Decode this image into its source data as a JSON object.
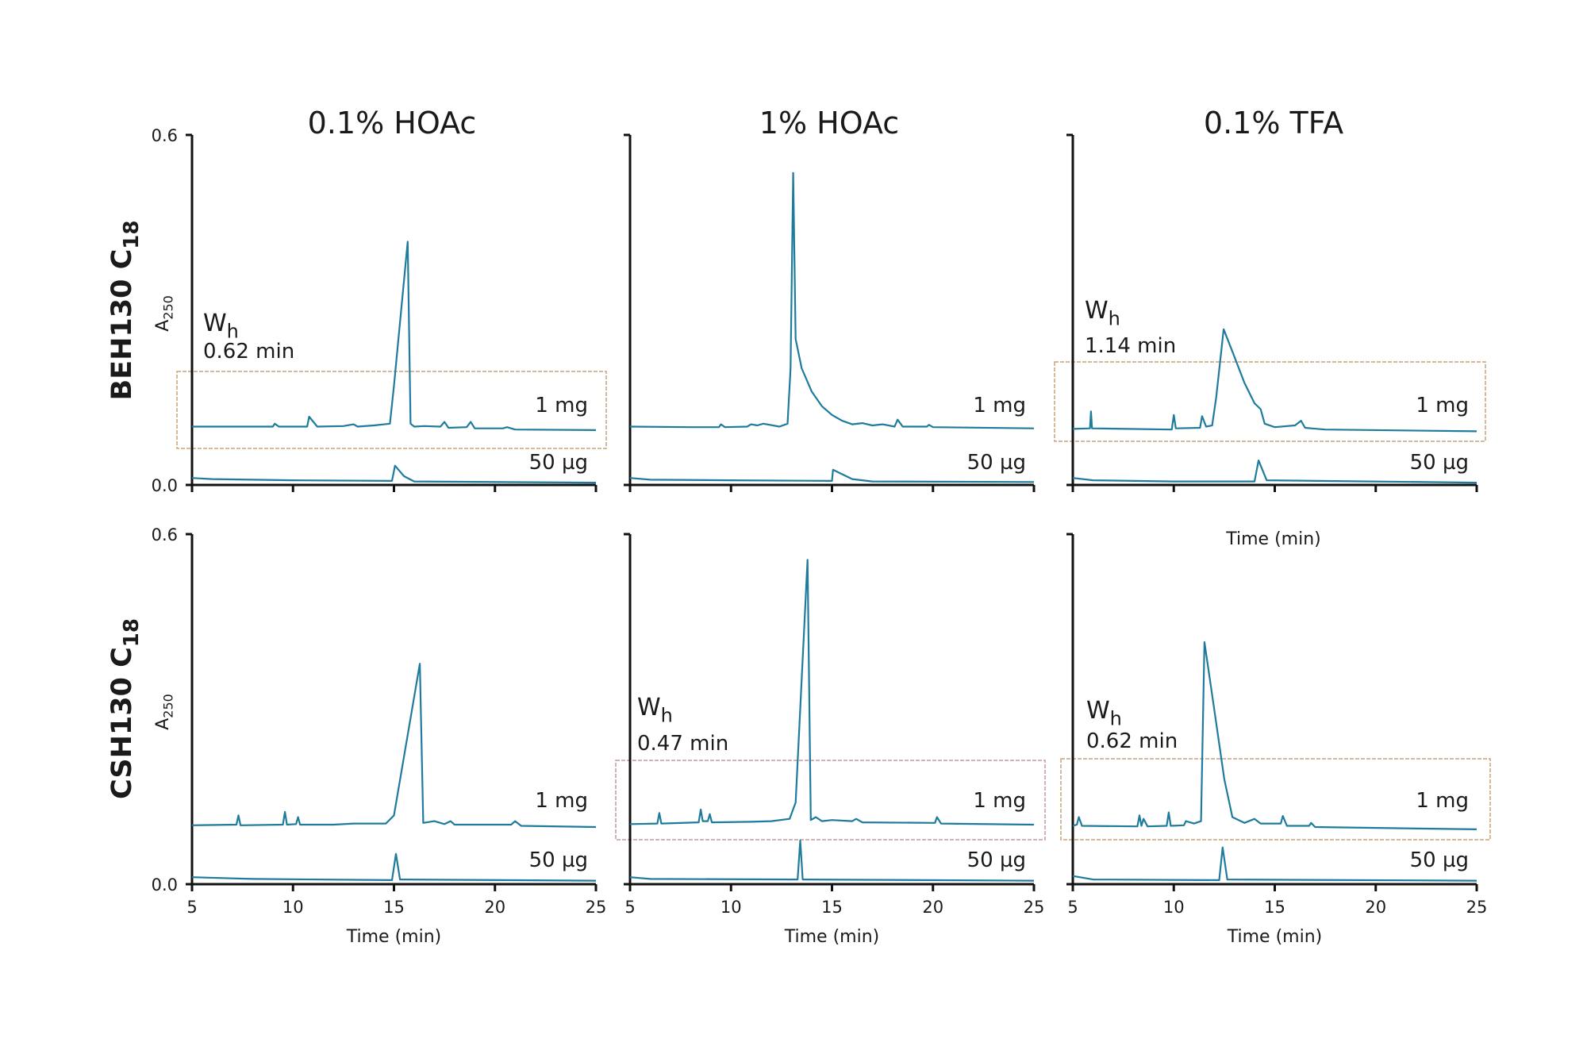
{
  "chart_data": {
    "type": "line",
    "layout": "2x3 grid",
    "column_titles": [
      "0.1% HOAc",
      "1% HOAc",
      "0.1% TFA"
    ],
    "row_labels": [
      {
        "main": "BEH130 C",
        "sub": "18"
      },
      {
        "main": "CSH130 C",
        "sub": "18"
      }
    ],
    "ylabel": {
      "main": "A",
      "sub": "250"
    },
    "xlabel": "Time (min)",
    "stray_xlabel": "Time (min)",
    "xlim": [
      5,
      25
    ],
    "ylim": [
      0,
      0.6
    ],
    "xticks": [
      "5",
      "10",
      "15",
      "20",
      "25"
    ],
    "yticks": [
      "0.0",
      "0.6"
    ],
    "grid": false,
    "colors": {
      "trace": "#1f7b9c",
      "box_tan": "#c9a27a",
      "box_rose": "#c29a9a",
      "axis": "#111111"
    },
    "panels": [
      {
        "row": 0,
        "col": 0,
        "annotation": {
          "label": "W",
          "sub": "h",
          "value": "0.62 min"
        },
        "box_color": "tan",
        "series": [
          {
            "name": "1 mg",
            "points": [
              [
                5,
                0.1
              ],
              [
                7,
                0.1
              ],
              [
                9,
                0.1
              ],
              [
                9.1,
                0.105
              ],
              [
                9.3,
                0.1
              ],
              [
                10.7,
                0.1
              ],
              [
                10.8,
                0.117
              ],
              [
                11.2,
                0.1
              ],
              [
                12.5,
                0.101
              ],
              [
                13,
                0.104
              ],
              [
                13.2,
                0.1
              ],
              [
                14,
                0.102
              ],
              [
                14.8,
                0.105
              ],
              [
                15.0,
                0.17
              ],
              [
                15.68,
                0.417
              ],
              [
                15.82,
                0.105
              ],
              [
                16,
                0.1
              ],
              [
                16.5,
                0.101
              ],
              [
                17.3,
                0.1
              ],
              [
                17.5,
                0.108
              ],
              [
                17.7,
                0.098
              ],
              [
                18.6,
                0.099
              ],
              [
                18.8,
                0.108
              ],
              [
                19,
                0.097
              ],
              [
                20.4,
                0.097
              ],
              [
                20.6,
                0.099
              ],
              [
                21,
                0.095
              ],
              [
                25,
                0.094
              ]
            ]
          },
          {
            "name": "50 µg",
            "points": [
              [
                5,
                0.012
              ],
              [
                6,
                0.01
              ],
              [
                10,
                0.008
              ],
              [
                14.9,
                0.007
              ],
              [
                15.05,
                0.033
              ],
              [
                15.5,
                0.015
              ],
              [
                16,
                0.006
              ],
              [
                25,
                0.004
              ]
            ]
          }
        ]
      },
      {
        "row": 0,
        "col": 1,
        "series": [
          {
            "name": "1 mg",
            "points": [
              [
                5,
                0.1
              ],
              [
                8,
                0.099
              ],
              [
                9.4,
                0.099
              ],
              [
                9.5,
                0.104
              ],
              [
                9.7,
                0.099
              ],
              [
                10.8,
                0.1
              ],
              [
                11,
                0.104
              ],
              [
                11.3,
                0.102
              ],
              [
                11.6,
                0.105
              ],
              [
                12.4,
                0.1
              ],
              [
                12.8,
                0.105
              ],
              [
                12.95,
                0.2
              ],
              [
                13.08,
                0.535
              ],
              [
                13.2,
                0.25
              ],
              [
                13.5,
                0.2
              ],
              [
                14,
                0.16
              ],
              [
                14.5,
                0.135
              ],
              [
                15,
                0.12
              ],
              [
                15.5,
                0.11
              ],
              [
                16,
                0.104
              ],
              [
                16.5,
                0.106
              ],
              [
                17,
                0.102
              ],
              [
                17.5,
                0.104
              ],
              [
                18.1,
                0.1
              ],
              [
                18.25,
                0.112
              ],
              [
                18.5,
                0.1
              ],
              [
                19.7,
                0.1
              ],
              [
                19.8,
                0.103
              ],
              [
                20,
                0.099
              ],
              [
                25,
                0.097
              ]
            ]
          },
          {
            "name": "50 µg",
            "points": [
              [
                5,
                0.012
              ],
              [
                6,
                0.009
              ],
              [
                10,
                0.008
              ],
              [
                15,
                0.007
              ],
              [
                15.05,
                0.026
              ],
              [
                16,
                0.01
              ],
              [
                17,
                0.006
              ],
              [
                25,
                0.005
              ]
            ]
          }
        ]
      },
      {
        "row": 0,
        "col": 2,
        "annotation": {
          "label": "W",
          "sub": "h",
          "value": "1.14 min"
        },
        "box_color": "tan",
        "series": [
          {
            "name": "1 mg",
            "points": [
              [
                5,
                0.096
              ],
              [
                5.85,
                0.097
              ],
              [
                5.9,
                0.126
              ],
              [
                5.95,
                0.097
              ],
              [
                9.9,
                0.095
              ],
              [
                10,
                0.12
              ],
              [
                10.1,
                0.097
              ],
              [
                11.3,
                0.098
              ],
              [
                11.4,
                0.118
              ],
              [
                11.6,
                0.1
              ],
              [
                11.9,
                0.102
              ],
              [
                12.1,
                0.15
              ],
              [
                12.47,
                0.267
              ],
              [
                13,
                0.22
              ],
              [
                13.5,
                0.175
              ],
              [
                14,
                0.14
              ],
              [
                14.3,
                0.13
              ],
              [
                14.5,
                0.105
              ],
              [
                15,
                0.099
              ],
              [
                16,
                0.102
              ],
              [
                16.3,
                0.11
              ],
              [
                16.5,
                0.098
              ],
              [
                17.5,
                0.095
              ],
              [
                25,
                0.092
              ]
            ]
          },
          {
            "name": "50 µg",
            "points": [
              [
                5,
                0.012
              ],
              [
                6,
                0.008
              ],
              [
                10,
                0.006
              ],
              [
                14.0,
                0.006
              ],
              [
                14.2,
                0.042
              ],
              [
                14.6,
                0.008
              ],
              [
                25,
                0.004
              ]
            ]
          }
        ]
      },
      {
        "row": 1,
        "col": 0,
        "series": [
          {
            "name": "1 mg",
            "points": [
              [
                5,
                0.101
              ],
              [
                7.2,
                0.102
              ],
              [
                7.3,
                0.118
              ],
              [
                7.4,
                0.101
              ],
              [
                9.5,
                0.102
              ],
              [
                9.6,
                0.124
              ],
              [
                9.7,
                0.102
              ],
              [
                10.15,
                0.103
              ],
              [
                10.25,
                0.115
              ],
              [
                10.35,
                0.102
              ],
              [
                12,
                0.102
              ],
              [
                13,
                0.104
              ],
              [
                14.6,
                0.104
              ],
              [
                15.0,
                0.118
              ],
              [
                16.28,
                0.378
              ],
              [
                16.45,
                0.105
              ],
              [
                17,
                0.108
              ],
              [
                17.5,
                0.103
              ],
              [
                17.8,
                0.108
              ],
              [
                18,
                0.102
              ],
              [
                20.8,
                0.102
              ],
              [
                21,
                0.108
              ],
              [
                21.3,
                0.1
              ],
              [
                25,
                0.098
              ]
            ]
          },
          {
            "name": "50 µg",
            "points": [
              [
                5,
                0.012
              ],
              [
                8,
                0.009
              ],
              [
                14.9,
                0.007
              ],
              [
                15.1,
                0.052
              ],
              [
                15.3,
                0.008
              ],
              [
                25,
                0.006
              ]
            ]
          }
        ]
      },
      {
        "row": 1,
        "col": 1,
        "annotation": {
          "label": "W",
          "sub": "h",
          "value": "0.47 min"
        },
        "box_color": "rose",
        "series": [
          {
            "name": "1 mg",
            "points": [
              [
                5,
                0.103
              ],
              [
                6.35,
                0.104
              ],
              [
                6.45,
                0.122
              ],
              [
                6.55,
                0.104
              ],
              [
                8.4,
                0.106
              ],
              [
                8.5,
                0.128
              ],
              [
                8.6,
                0.108
              ],
              [
                8.85,
                0.108
              ],
              [
                8.95,
                0.12
              ],
              [
                9.05,
                0.106
              ],
              [
                11,
                0.107
              ],
              [
                12,
                0.108
              ],
              [
                12.9,
                0.112
              ],
              [
                13.2,
                0.14
              ],
              [
                13.79,
                0.556
              ],
              [
                13.95,
                0.11
              ],
              [
                14.2,
                0.115
              ],
              [
                14.5,
                0.108
              ],
              [
                15,
                0.11
              ],
              [
                16,
                0.108
              ],
              [
                16.2,
                0.112
              ],
              [
                16.5,
                0.106
              ],
              [
                20.1,
                0.105
              ],
              [
                20.2,
                0.115
              ],
              [
                20.4,
                0.104
              ],
              [
                25,
                0.102
              ]
            ]
          },
          {
            "name": "50 µg",
            "points": [
              [
                5,
                0.012
              ],
              [
                6,
                0.009
              ],
              [
                13.3,
                0.008
              ],
              [
                13.43,
                0.075
              ],
              [
                13.55,
                0.008
              ],
              [
                25,
                0.006
              ]
            ]
          }
        ]
      },
      {
        "row": 1,
        "col": 2,
        "annotation": {
          "label": "W",
          "sub": "h",
          "value": "0.62 min"
        },
        "box_color": "tan",
        "series": [
          {
            "name": "1 mg",
            "points": [
              [
                5,
                0.1
              ],
              [
                5.2,
                0.102
              ],
              [
                5.3,
                0.115
              ],
              [
                5.45,
                0.1
              ],
              [
                8.2,
                0.099
              ],
              [
                8.3,
                0.118
              ],
              [
                8.4,
                0.1
              ],
              [
                8.5,
                0.112
              ],
              [
                8.7,
                0.099
              ],
              [
                9.65,
                0.1
              ],
              [
                9.75,
                0.123
              ],
              [
                9.85,
                0.1
              ],
              [
                10.5,
                0.101
              ],
              [
                10.6,
                0.108
              ],
              [
                11,
                0.104
              ],
              [
                11.35,
                0.108
              ],
              [
                11.52,
                0.415
              ],
              [
                12,
                0.3
              ],
              [
                12.5,
                0.18
              ],
              [
                12.9,
                0.115
              ],
              [
                13.5,
                0.105
              ],
              [
                14,
                0.112
              ],
              [
                14.3,
                0.104
              ],
              [
                15.3,
                0.104
              ],
              [
                15.4,
                0.117
              ],
              [
                15.6,
                0.1
              ],
              [
                16.7,
                0.1
              ],
              [
                16.8,
                0.105
              ],
              [
                17,
                0.098
              ],
              [
                25,
                0.094
              ]
            ]
          },
          {
            "name": "50 µg",
            "points": [
              [
                5,
                0.014
              ],
              [
                6,
                0.008
              ],
              [
                12.25,
                0.007
              ],
              [
                12.42,
                0.063
              ],
              [
                12.65,
                0.008
              ],
              [
                25,
                0.006
              ]
            ]
          }
        ]
      }
    ]
  }
}
